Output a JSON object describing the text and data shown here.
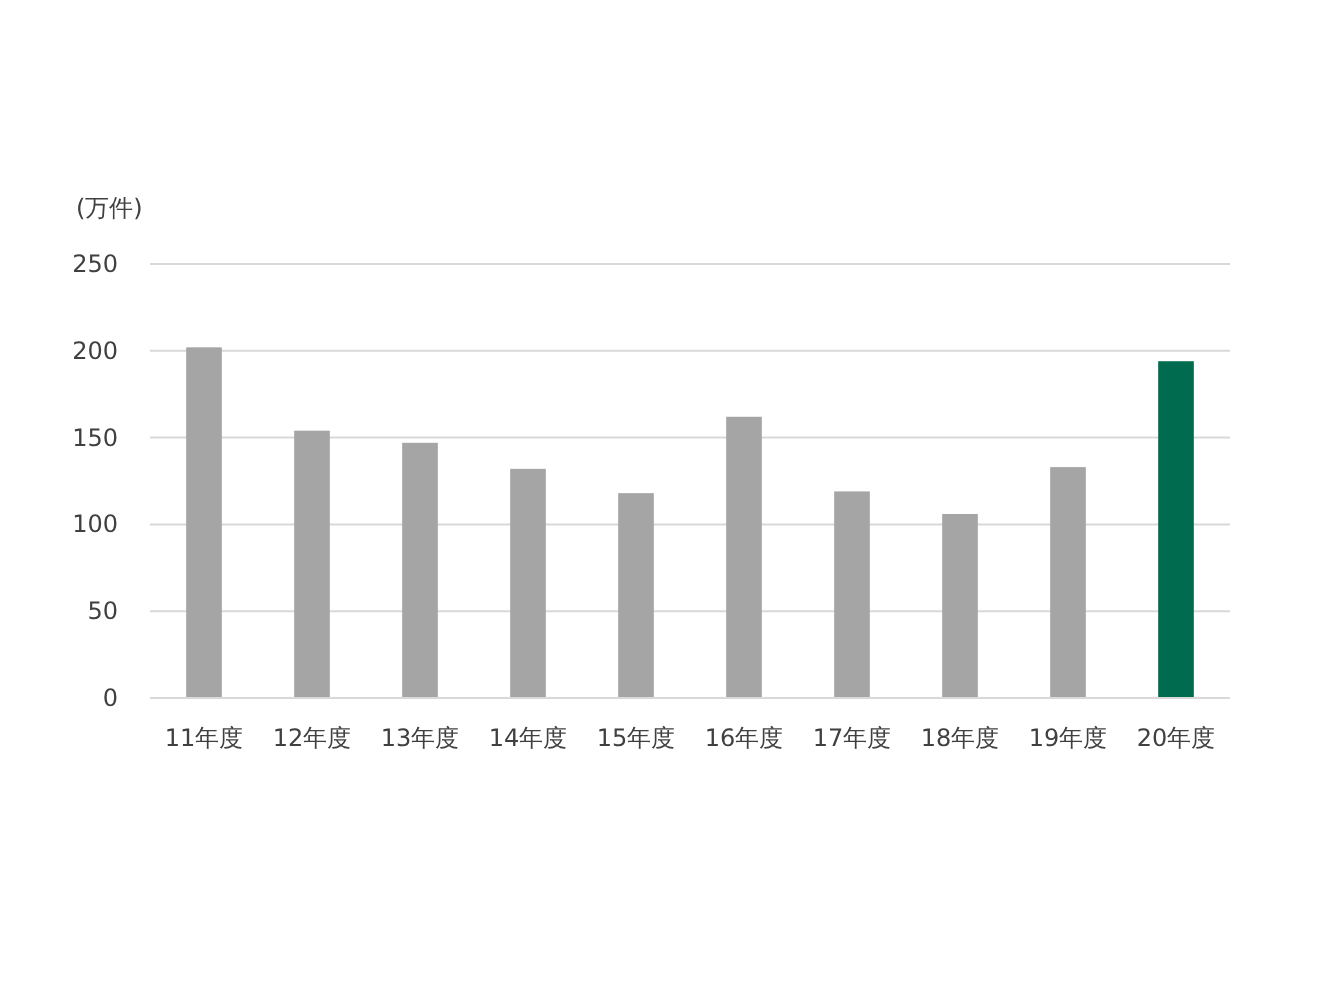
{
  "chart_data": {
    "type": "bar",
    "ylabel": "(万件)",
    "categories": [
      "11年度",
      "12年度",
      "13年度",
      "14年度",
      "15年度",
      "16年度",
      "17年度",
      "18年度",
      "19年度",
      "20年度"
    ],
    "values": [
      202,
      154,
      147,
      132,
      118,
      162,
      119,
      106,
      133,
      194
    ],
    "colors": [
      "#a5a5a5",
      "#a5a5a5",
      "#a5a5a5",
      "#a5a5a5",
      "#a5a5a5",
      "#a5a5a5",
      "#a5a5a5",
      "#a5a5a5",
      "#a5a5a5",
      "#006b4f"
    ],
    "ylim": [
      0,
      250
    ],
    "yticks": [
      0,
      50,
      100,
      150,
      200,
      250
    ],
    "grid": "y"
  }
}
